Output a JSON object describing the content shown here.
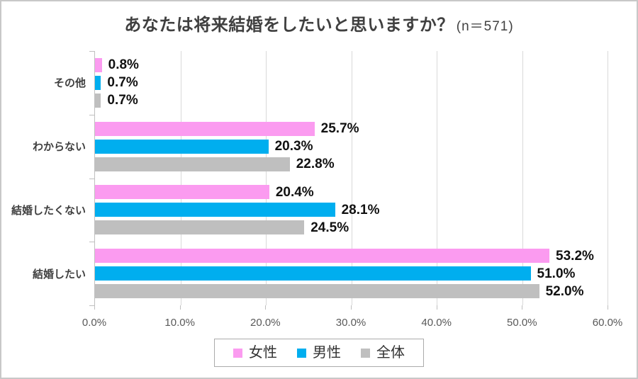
{
  "title": {
    "main": "あなたは将来結婚をしたいと思いますか？",
    "suffix": "(n＝571)"
  },
  "chart_data": {
    "type": "bar",
    "orientation": "horizontal",
    "title": "あなたは将来結婚をしたいと思いますか？(n＝571)",
    "sample_size_text": "n＝571",
    "categories": [
      "その他",
      "わからない",
      "結婚したくない",
      "結婚したい"
    ],
    "series": [
      {
        "key": "female",
        "name": "女性",
        "color": "#FB9BF0",
        "values": [
          0.8,
          25.7,
          20.4,
          53.2
        ],
        "labels": [
          "0.8%",
          "25.7%",
          "20.4%",
          "53.2%"
        ]
      },
      {
        "key": "male",
        "name": "男性",
        "color": "#00AEEF",
        "values": [
          0.7,
          20.3,
          28.1,
          51.0
        ],
        "labels": [
          "0.7%",
          "20.3%",
          "28.1%",
          "51.0%"
        ]
      },
      {
        "key": "overall",
        "name": "全体",
        "color": "#BFBFBF",
        "values": [
          0.7,
          22.8,
          24.5,
          52.0
        ],
        "labels": [
          "0.7%",
          "22.8%",
          "24.5%",
          "52.0%"
        ]
      }
    ],
    "xlim": [
      0,
      60
    ],
    "x_ticks": [
      "0.0%",
      "10.0%",
      "20.0%",
      "30.0%",
      "40.0%",
      "50.0%",
      "60.0%"
    ],
    "grid": true,
    "legend_position": "bottom"
  },
  "colors": {
    "female": "#FB9BF0",
    "male": "#00AEEF",
    "overall": "#BFBFBF",
    "gridline": "#D9D9D9",
    "axis_line": "#BFBFBF",
    "title_text": "#404040",
    "category_text": "#404040",
    "value_text": "#111111",
    "tick_text": "#595959",
    "legend_border": "#ABABAB",
    "frame_border": "#C8C8C8"
  }
}
